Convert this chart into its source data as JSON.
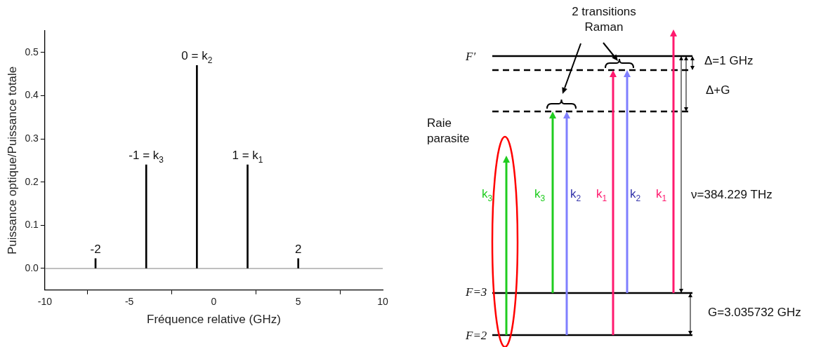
{
  "chart_data": [
    {
      "type": "bar",
      "xlabel": "Fréquence relative (GHz)",
      "ylabel": "Puissance optique/Puissance totale",
      "x": [
        -7,
        -4,
        -1,
        2,
        5
      ],
      "series": [
        {
          "color": "#000000",
          "values": [
            0.023,
            0.24,
            0.47,
            0.24,
            0.023
          ]
        }
      ],
      "grid": false,
      "legend": false,
      "xlim": [
        -10,
        10
      ],
      "xticks": [
        -10,
        -5,
        0,
        5,
        10
      ],
      "ylim": [
        -0.05,
        0.55
      ],
      "yticks": [
        {
          "value": 0,
          "label": "0.0"
        },
        0.1,
        0.2,
        0.3,
        0.4,
        0.5
      ],
      "ref_lines": [
        {
          "axis": "y",
          "value": 0,
          "color": "#808080"
        }
      ],
      "annotations": [
        {
          "text": "-2",
          "x": -7,
          "y": 0.023
        },
        {
          "text": "-1 = k$_{3}$",
          "x": -4,
          "y": 0.24
        },
        {
          "text": "0 = k$_{2}$",
          "x": -1,
          "y": 0.47
        },
        {
          "text": "1 = k$_{1}$",
          "x": 2,
          "y": 0.24
        },
        {
          "text": "2",
          "x": 5,
          "y": 0.023
        }
      ]
    },
    {
      "type": "other",
      "annotations": [
        "2 transitions\nRaman",
        "F′",
        "Δ=1 GHz",
        "Δ+G",
        "Raie\nparasite",
        "k$_{3}$",
        "k$_{3}$",
        "k$_{2}$",
        "k$_{1}$",
        "k$_{2}$",
        "k$_{1}$",
        "ν=384.229 THz",
        "F=3",
        "F=2",
        "G=3.035732 GHz"
      ]
    }
  ]
}
